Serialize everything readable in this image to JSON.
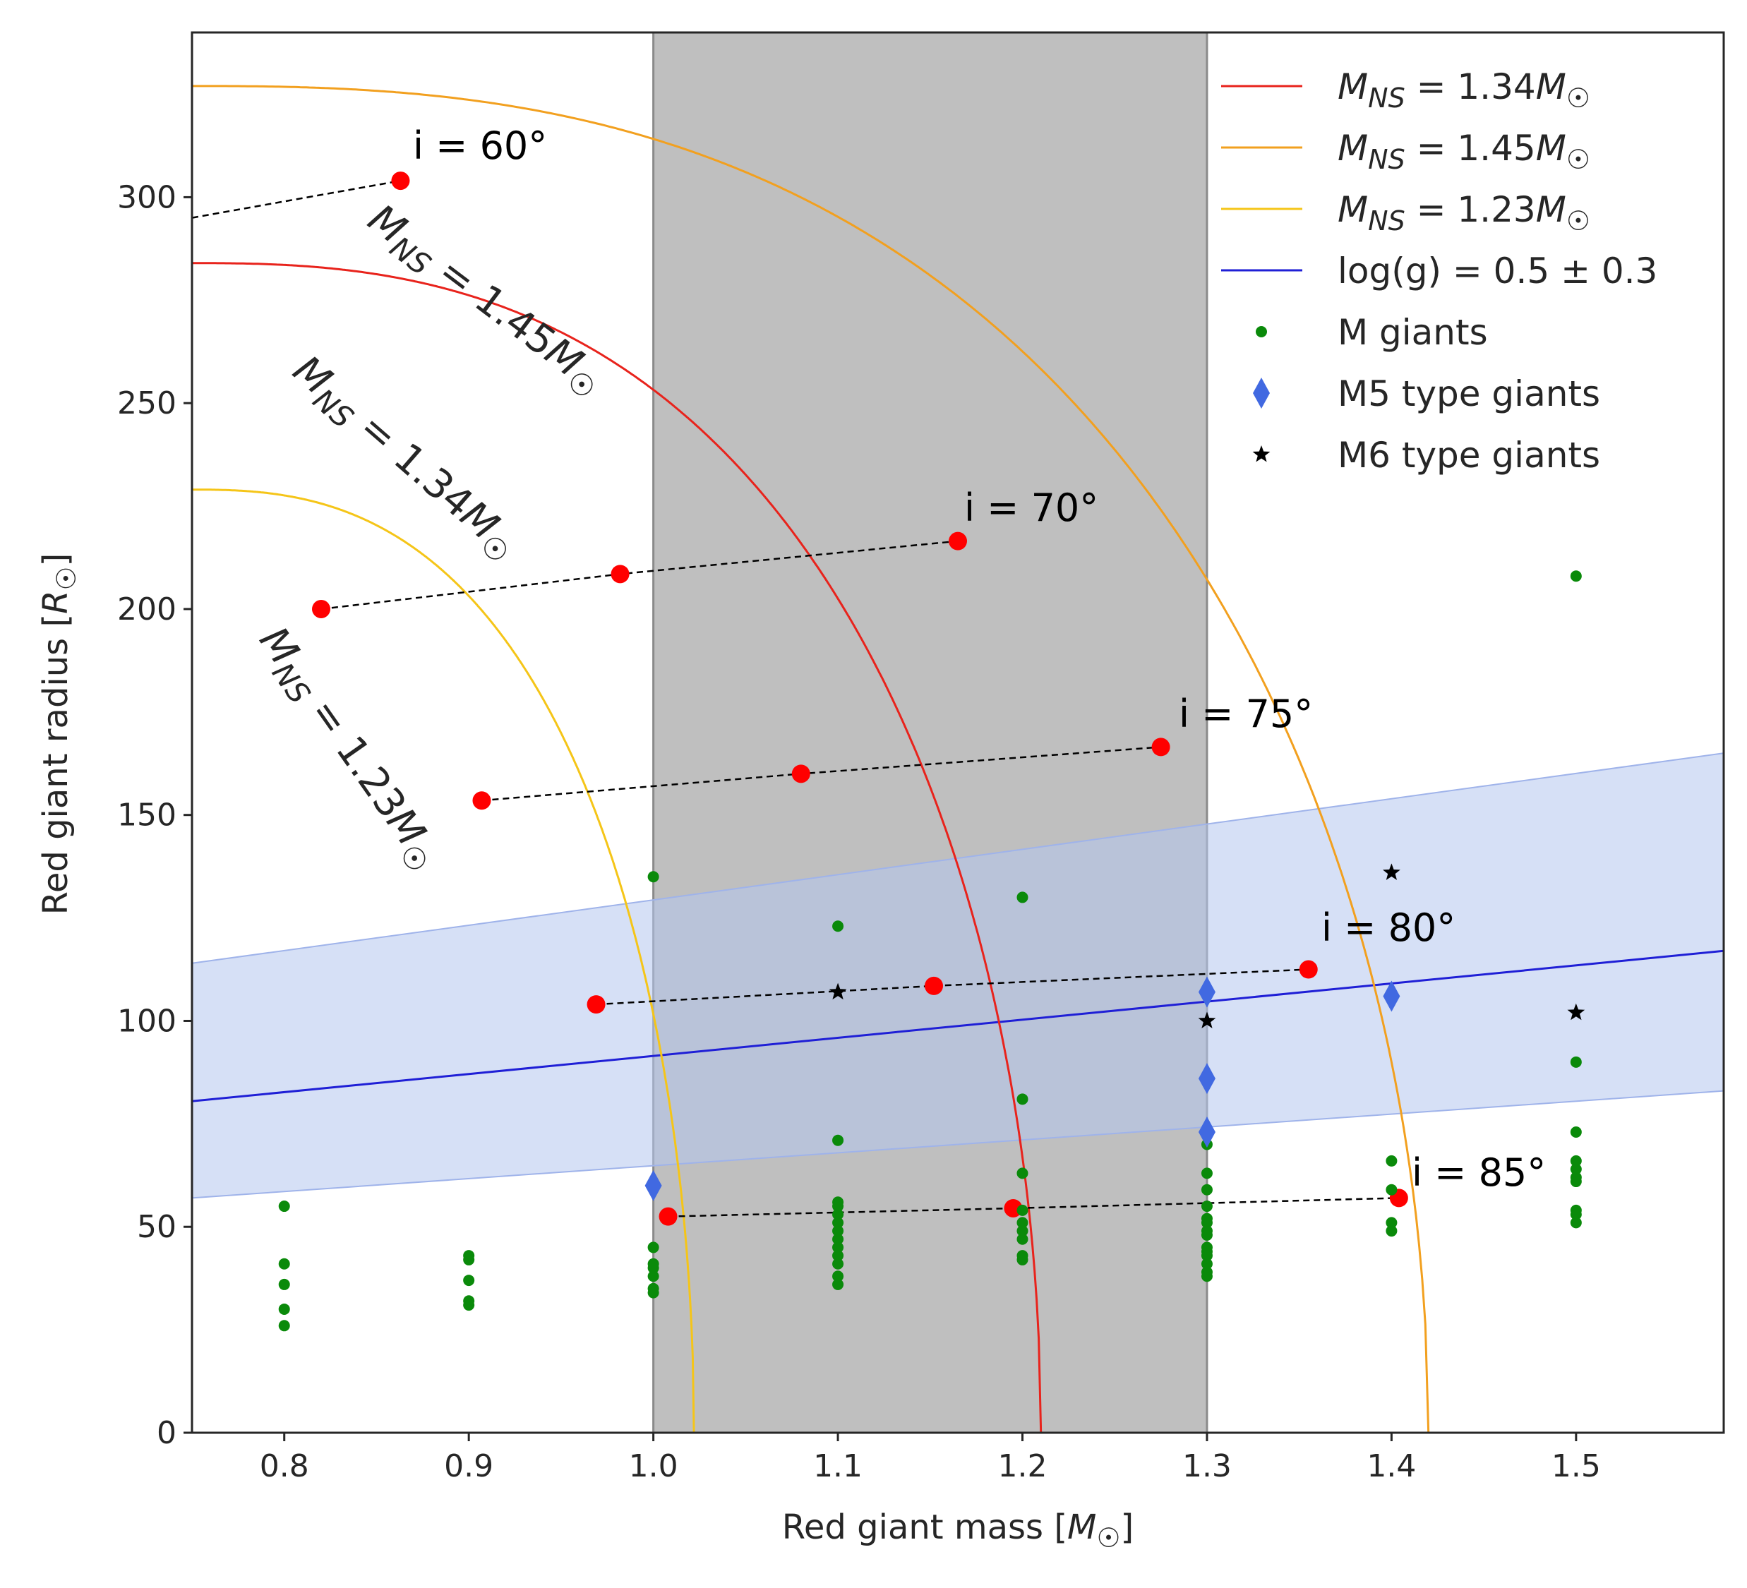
{
  "chart_data": {
    "type": "scatter",
    "xlabel": "Red giant mass [M☉]",
    "ylabel": "Red giant radius [R☉]",
    "xlim": [
      0.75,
      1.58
    ],
    "ylim": [
      0,
      340
    ],
    "xticks": [
      "0.8",
      "0.9",
      "1.0",
      "1.1",
      "1.2",
      "1.3",
      "1.4",
      "1.5"
    ],
    "yticks": [
      "0",
      "50",
      "100",
      "150",
      "200",
      "250",
      "300"
    ],
    "grid": false,
    "shaded_mass_range": [
      1.0,
      1.3
    ],
    "curves": [
      {
        "name": "M_NS = 1.34M☉",
        "color": "#e8231c",
        "x0": 1.21,
        "y_at_0_75": 284
      },
      {
        "name": "M_NS = 1.45M☉",
        "color": "#f2a01f",
        "x0": 1.42,
        "y_at_0_75": 327
      },
      {
        "name": "M_NS = 1.23M☉",
        "color": "#f5c518",
        "x0": 1.022,
        "y_at_0_75": 229
      }
    ],
    "curve_labels": [
      {
        "main": "M",
        "sub": "NS",
        "rest": " = 1.45M",
        "sun": "☉"
      },
      {
        "main": "M",
        "sub": "NS",
        "rest": " = 1.34M",
        "sun": "☉"
      },
      {
        "main": "M",
        "sub": "NS",
        "rest": " = 1.23M",
        "sun": "☉"
      }
    ],
    "logg_band": {
      "name": "log(g) = 0.5 ± 0.3",
      "color": "#1f1fd6",
      "fill": "#b5c6ef",
      "center": [
        [
          0.75,
          80.5
        ],
        [
          1.58,
          117
        ]
      ],
      "upper": [
        [
          0.75,
          114
        ],
        [
          1.58,
          165
        ]
      ],
      "lower": [
        [
          0.75,
          57
        ],
        [
          1.58,
          83
        ]
      ]
    },
    "inclination_lines": [
      {
        "label": "i = 60°",
        "points": [
          [
            0.75,
            295
          ],
          [
            0.863,
            304
          ]
        ]
      },
      {
        "label": "i = 70°",
        "points": [
          [
            0.82,
            200
          ],
          [
            0.982,
            208.5
          ],
          [
            1.165,
            216.5
          ]
        ]
      },
      {
        "label": "i = 75°",
        "points": [
          [
            0.907,
            153.5
          ],
          [
            1.08,
            160
          ],
          [
            1.275,
            166.5
          ]
        ]
      },
      {
        "label": "i = 80°",
        "points": [
          [
            0.969,
            104
          ],
          [
            1.152,
            108.5
          ],
          [
            1.355,
            112.5
          ]
        ]
      },
      {
        "label": "i = 85°",
        "points": [
          [
            1.008,
            52.5
          ],
          [
            1.195,
            54.5
          ],
          [
            1.404,
            57
          ]
        ]
      }
    ],
    "series": [
      {
        "name": "M giants",
        "marker": "dot",
        "color": "#0a8a0a",
        "points": [
          [
            0.8,
            55
          ],
          [
            0.8,
            41
          ],
          [
            0.8,
            36
          ],
          [
            0.8,
            30
          ],
          [
            0.8,
            26
          ],
          [
            0.9,
            43
          ],
          [
            0.9,
            42
          ],
          [
            0.9,
            37
          ],
          [
            0.9,
            32
          ],
          [
            0.9,
            31
          ],
          [
            1.0,
            135
          ],
          [
            1.0,
            45
          ],
          [
            1.0,
            41
          ],
          [
            1.0,
            40
          ],
          [
            1.0,
            38
          ],
          [
            1.0,
            35
          ],
          [
            1.0,
            34
          ],
          [
            1.1,
            123
          ],
          [
            1.1,
            71
          ],
          [
            1.1,
            56
          ],
          [
            1.1,
            55
          ],
          [
            1.1,
            53
          ],
          [
            1.1,
            51
          ],
          [
            1.1,
            49
          ],
          [
            1.1,
            47
          ],
          [
            1.1,
            45
          ],
          [
            1.1,
            43
          ],
          [
            1.1,
            41
          ],
          [
            1.1,
            38
          ],
          [
            1.1,
            36
          ],
          [
            1.2,
            130
          ],
          [
            1.2,
            81
          ],
          [
            1.2,
            63
          ],
          [
            1.2,
            54
          ],
          [
            1.2,
            51
          ],
          [
            1.2,
            49
          ],
          [
            1.2,
            47
          ],
          [
            1.2,
            43
          ],
          [
            1.2,
            42
          ],
          [
            1.3,
            73
          ],
          [
            1.3,
            70
          ],
          [
            1.3,
            63
          ],
          [
            1.3,
            59
          ],
          [
            1.3,
            55
          ],
          [
            1.3,
            52
          ],
          [
            1.3,
            51
          ],
          [
            1.3,
            49
          ],
          [
            1.3,
            48
          ],
          [
            1.3,
            45
          ],
          [
            1.3,
            44
          ],
          [
            1.3,
            43
          ],
          [
            1.3,
            41
          ],
          [
            1.3,
            39
          ],
          [
            1.3,
            38
          ],
          [
            1.4,
            66
          ],
          [
            1.4,
            59
          ],
          [
            1.4,
            51
          ],
          [
            1.4,
            49
          ],
          [
            1.5,
            208
          ],
          [
            1.5,
            90
          ],
          [
            1.5,
            73
          ],
          [
            1.5,
            66
          ],
          [
            1.5,
            64
          ],
          [
            1.5,
            62
          ],
          [
            1.5,
            61
          ],
          [
            1.5,
            54
          ],
          [
            1.5,
            53
          ],
          [
            1.5,
            51
          ]
        ]
      },
      {
        "name": "M5 type giants",
        "marker": "diamond",
        "color": "#4169e1",
        "points": [
          [
            1.0,
            60
          ],
          [
            1.3,
            107
          ],
          [
            1.3,
            86
          ],
          [
            1.3,
            73
          ],
          [
            1.4,
            106
          ]
        ]
      },
      {
        "name": "M6 type giants",
        "marker": "star",
        "color": "#000000",
        "points": [
          [
            1.1,
            107
          ],
          [
            1.3,
            100
          ],
          [
            1.4,
            136
          ],
          [
            1.5,
            102
          ]
        ]
      }
    ],
    "legend": {
      "position": "top-right",
      "entries": [
        {
          "kind": "line",
          "color": "#e8231c",
          "math": true,
          "main": "M",
          "sub": "NS",
          "rest": " = 1.34M",
          "sun": "☉"
        },
        {
          "kind": "line",
          "color": "#f2a01f",
          "math": true,
          "main": "M",
          "sub": "NS",
          "rest": " = 1.45M",
          "sun": "☉"
        },
        {
          "kind": "line",
          "color": "#f5c518",
          "math": true,
          "main": "M",
          "sub": "NS",
          "rest": " = 1.23M",
          "sun": "☉"
        },
        {
          "kind": "line",
          "color": "#1f1fd6",
          "math": false,
          "text": "log(g) = 0.5 ± 0.3"
        },
        {
          "kind": "dot",
          "color": "#0a8a0a",
          "math": false,
          "text": "M giants"
        },
        {
          "kind": "diamond",
          "color": "#4169e1",
          "math": false,
          "text": "M5 type giants"
        },
        {
          "kind": "star",
          "color": "#000000",
          "math": false,
          "text": "M6 type giants"
        }
      ]
    }
  }
}
